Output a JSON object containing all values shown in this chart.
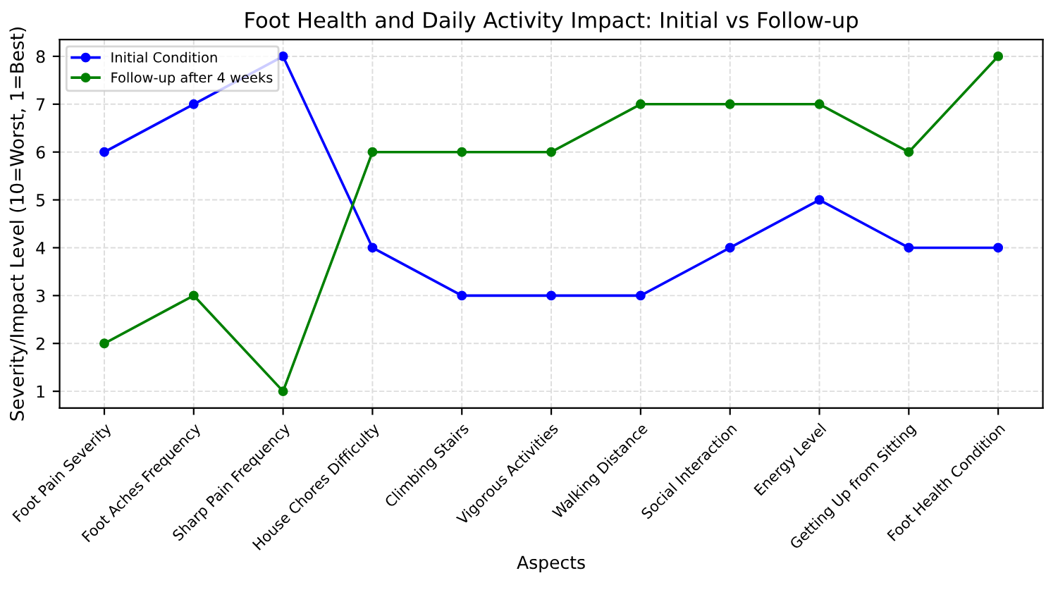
{
  "chart_data": {
    "type": "line",
    "title": "Foot Health and Daily Activity Impact: Initial vs Follow-up",
    "xlabel": "Aspects",
    "ylabel": "Severity/Impact Level (10=Worst, 1=Best)",
    "categories": [
      "Foot Pain Severity",
      "Foot Aches Frequency",
      "Sharp Pain Frequency",
      "House Chores Difficulty",
      "Climbing Stairs",
      "Vigorous Activities",
      "Walking Distance",
      "Social Interaction",
      "Energy Level",
      "Getting Up from Sitting",
      "Foot Health Condition"
    ],
    "series": [
      {
        "name": "Initial Condition",
        "color": "#0000ff",
        "values": [
          6,
          7,
          8,
          4,
          3,
          3,
          3,
          4,
          5,
          4,
          4
        ]
      },
      {
        "name": "Follow-up after 4 weeks",
        "color": "#008000",
        "values": [
          2,
          3,
          1,
          6,
          6,
          6,
          7,
          7,
          7,
          6,
          8
        ]
      }
    ],
    "ylim": [
      0.65,
      8.35
    ],
    "yticks": [
      1,
      2,
      3,
      4,
      5,
      6,
      7,
      8
    ],
    "grid": true,
    "legend": "top left",
    "marker": "circle",
    "line_style": "solid"
  }
}
